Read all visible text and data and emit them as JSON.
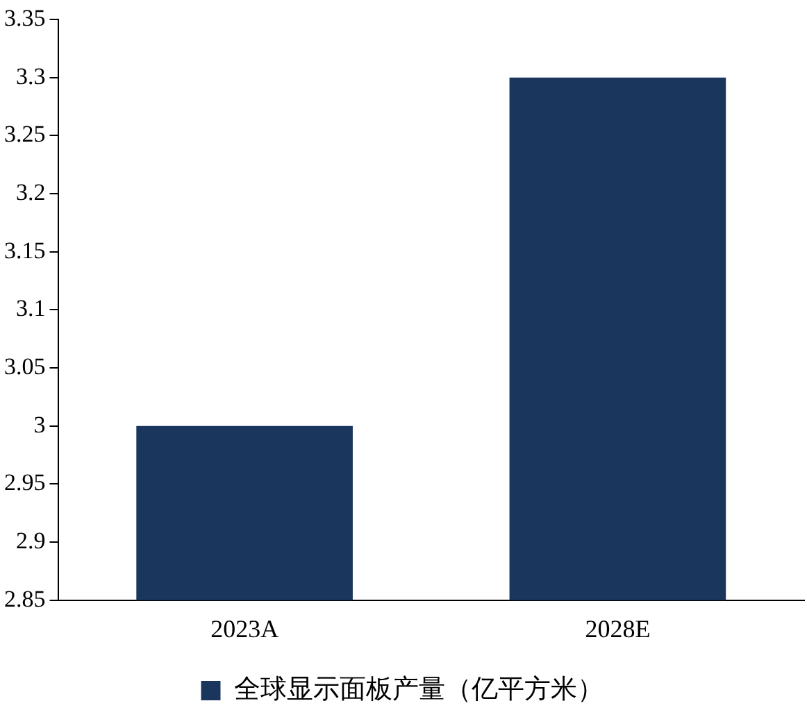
{
  "chart_data": {
    "type": "bar",
    "categories": [
      "2023A",
      "2028E"
    ],
    "series": [
      {
        "name": "全球显示面板产量（亿平方米）",
        "color": "#1b365d",
        "values": [
          3,
          3.3
        ]
      }
    ],
    "ylim": [
      2.85,
      3.35
    ],
    "yticks": [
      2.85,
      2.9,
      2.95,
      3,
      3.05,
      3.1,
      3.15,
      3.2,
      3.25,
      3.3,
      3.35
    ],
    "grid": false,
    "legend": "bottom"
  }
}
